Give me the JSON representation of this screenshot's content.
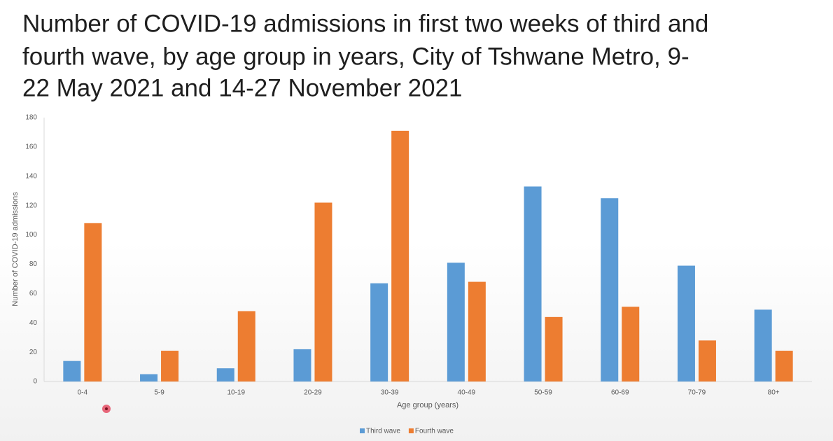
{
  "chart_data": {
    "type": "bar",
    "title_lines": [
      "Number of COVID-19 admissions in first two weeks of third and",
      "fourth wave, by age group in years, City of Tshwane Metro, 9-",
      "22 May 2021 and 14-27 November 2021"
    ],
    "x_label": "Age group (years)",
    "y_label": "Number of COVID-19 admissions",
    "categories": [
      "0-4",
      "5-9",
      "10-19",
      "20-29",
      "30-39",
      "40-49",
      "50-59",
      "60-69",
      "70-79",
      "80+"
    ],
    "series": [
      {
        "name": "Third wave",
        "color": "#5b9bd5",
        "values": [
          14,
          5,
          9,
          22,
          67,
          81,
          133,
          125,
          79,
          49
        ]
      },
      {
        "name": "Fourth wave",
        "color": "#ed7d31",
        "values": [
          108,
          21,
          48,
          122,
          171,
          68,
          44,
          51,
          28,
          21
        ]
      }
    ],
    "ylim": [
      0,
      180
    ],
    "yticks": [
      0,
      20,
      40,
      60,
      80,
      100,
      120,
      140,
      160,
      180
    ],
    "grid": false,
    "legend": "bottom"
  }
}
